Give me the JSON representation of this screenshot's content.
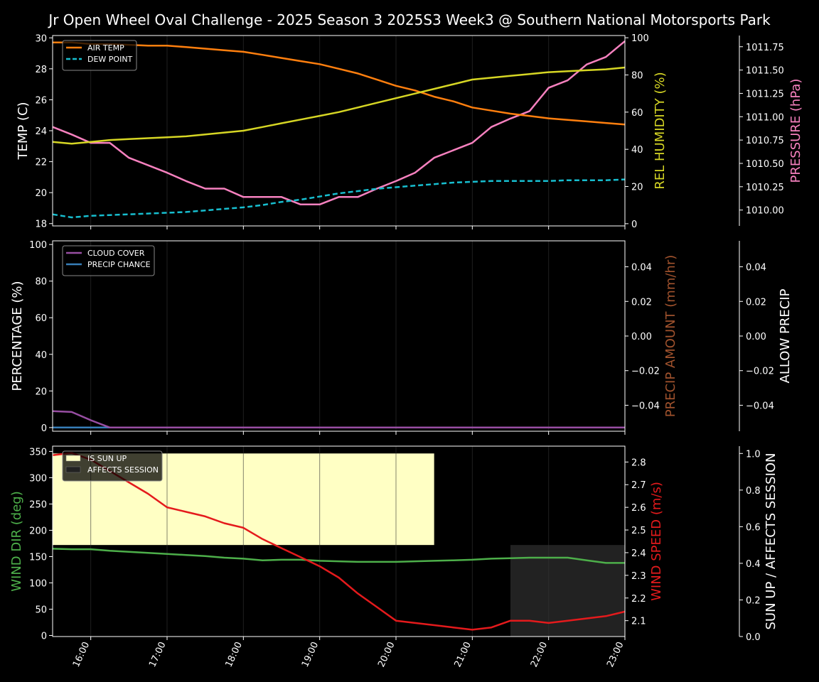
{
  "title": "Jr Open Wheel Oval Challenge - 2025 Season 3 2025S3 Week3 @ Southern National Motorsports Park",
  "colors": {
    "air_temp": "#ff7f0e",
    "dew_point": "#17becf",
    "humidity": "#d6d624",
    "pressure": "#f781bf",
    "cloud": "#984ea3",
    "precip_chance": "#377eb8",
    "precip_amount": "#a0522d",
    "wind_dir": "#4daf4a",
    "wind_speed": "#e41a1c",
    "sun_up": "#ffffc4",
    "affects_session": "#222222"
  },
  "chart_data": [
    {
      "type": "line",
      "panel": "temperature",
      "x": [
        "15:30",
        "15:45",
        "16:00",
        "16:15",
        "16:30",
        "16:45",
        "17:00",
        "17:15",
        "17:30",
        "17:45",
        "18:00",
        "18:15",
        "18:30",
        "18:45",
        "19:00",
        "19:15",
        "19:30",
        "19:45",
        "20:00",
        "20:15",
        "20:30",
        "20:45",
        "21:00",
        "21:15",
        "21:30",
        "21:45",
        "22:00",
        "22:15",
        "22:30",
        "22:45",
        "23:00"
      ],
      "xticks": [
        "16:00",
        "17:00",
        "18:00",
        "19:00",
        "20:00",
        "21:00",
        "22:00",
        "23:00"
      ],
      "legend": [
        "AIR TEMP",
        "DEW POINT"
      ],
      "ylabel": "TEMP (C)",
      "ylim": [
        17.85,
        30.15
      ],
      "yticks": [
        "18",
        "20",
        "22",
        "24",
        "26",
        "28",
        "30"
      ],
      "series": [
        {
          "name": "AIR TEMP",
          "axis": "left",
          "values": [
            29.7,
            29.7,
            29.6,
            29.6,
            29.55,
            29.5,
            29.5,
            29.4,
            29.3,
            29.2,
            29.1,
            28.9,
            28.7,
            28.5,
            28.3,
            28.0,
            27.7,
            27.3,
            26.9,
            26.6,
            26.2,
            25.9,
            25.5,
            25.3,
            25.1,
            24.95,
            24.8,
            24.7,
            24.6,
            24.5,
            24.4
          ]
        },
        {
          "name": "DEW POINT",
          "axis": "left",
          "dashed": true,
          "values": [
            18.6,
            18.4,
            18.5,
            18.55,
            18.6,
            18.65,
            18.7,
            18.75,
            18.85,
            18.95,
            19.05,
            19.2,
            19.4,
            19.55,
            19.75,
            19.95,
            20.1,
            20.25,
            20.35,
            20.45,
            20.55,
            20.65,
            20.7,
            20.75,
            20.75,
            20.75,
            20.75,
            20.8,
            20.8,
            20.8,
            20.85
          ]
        },
        {
          "name": "REL HUMIDITY",
          "axis": "right1",
          "values": [
            44,
            43,
            44,
            45,
            45.5,
            46,
            46.5,
            47,
            48,
            49,
            50,
            52,
            54,
            56,
            58,
            60,
            62.5,
            65,
            67.5,
            70,
            72.5,
            75,
            77.5,
            78.5,
            79.5,
            80.5,
            81.5,
            82,
            82.5,
            83,
            84
          ]
        },
        {
          "name": "PRESSURE",
          "axis": "right2",
          "values": [
            1010.89,
            1010.81,
            1010.72,
            1010.72,
            1010.56,
            1010.48,
            1010.4,
            1010.31,
            1010.23,
            1010.23,
            1010.14,
            1010.14,
            1010.14,
            1010.06,
            1010.06,
            1010.14,
            1010.14,
            1010.23,
            1010.31,
            1010.4,
            1010.56,
            1010.64,
            1010.72,
            1010.89,
            1010.98,
            1011.06,
            1011.31,
            1011.39,
            1011.56,
            1011.64,
            1011.81
          ]
        }
      ],
      "right_axis_1": {
        "label": "REL HUMIDITY (%)",
        "ylim": [
          -1.2,
          101.2
        ],
        "yticks": [
          "0",
          "20",
          "40",
          "60",
          "80",
          "100"
        ]
      },
      "right_axis_2": {
        "label": "PRESSURE (hPa)",
        "ylim": [
          1009.83,
          1011.87
        ],
        "yticks": [
          "1010.00",
          "1010.25",
          "1010.50",
          "1010.75",
          "1011.00",
          "1011.25",
          "1011.50",
          "1011.75"
        ]
      }
    },
    {
      "type": "line",
      "panel": "precipitation",
      "legend": [
        "CLOUD COVER",
        "PRECIP CHANCE"
      ],
      "ylabel": "PERCENTAGE (%)",
      "ylim": [
        -2,
        102
      ],
      "yticks": [
        "0",
        "20",
        "40",
        "60",
        "80",
        "100"
      ],
      "series": [
        {
          "name": "CLOUD COVER",
          "axis": "left",
          "values": [
            9,
            8.5,
            4,
            0,
            0,
            0,
            0,
            0,
            0,
            0,
            0,
            0,
            0,
            0,
            0,
            0,
            0,
            0,
            0,
            0,
            0,
            0,
            0,
            0,
            0,
            0,
            0,
            0,
            0,
            0,
            0
          ]
        },
        {
          "name": "PRECIP CHANCE",
          "axis": "left",
          "values": [
            0,
            0,
            0,
            0,
            0,
            0,
            0,
            0,
            0,
            0,
            0,
            0,
            0,
            0,
            0,
            0,
            0,
            0,
            0,
            0,
            0,
            0,
            0,
            0,
            0,
            0,
            0,
            0,
            0,
            0,
            0
          ]
        }
      ],
      "right_axis_1": {
        "label": "PRECIP AMOUNT (mm/hr)",
        "ylim": [
          -0.055,
          0.055
        ],
        "yticks": [
          "−0.04",
          "−0.02",
          "0.00",
          "0.02",
          "0.04"
        ]
      },
      "right_axis_2": {
        "label": "ALLOW PRECIP",
        "ylim": [
          -0.055,
          0.055
        ],
        "yticks": [
          "−0.04",
          "−0.02",
          "0.00",
          "0.02",
          "0.04"
        ]
      }
    },
    {
      "type": "line",
      "panel": "wind",
      "legend": [
        "IS SUN UP",
        "AFFECTS SESSION"
      ],
      "ylabel": "WIND DIR (deg)",
      "ylim": [
        -2,
        360
      ],
      "yticks": [
        "0",
        "50",
        "100",
        "150",
        "200",
        "250",
        "300",
        "350"
      ],
      "sun_up_until": "20:30",
      "affects_session_from": "21:30",
      "series": [
        {
          "name": "WIND DIR",
          "axis": "left",
          "values": [
            165,
            164,
            164,
            161,
            159,
            157,
            155,
            153,
            151,
            148,
            146,
            143,
            144,
            144,
            142,
            141,
            140,
            140,
            140,
            141,
            142,
            143,
            144,
            146,
            147,
            148,
            148,
            148,
            143,
            138,
            138
          ]
        },
        {
          "name": "WIND SPEED",
          "axis": "right1",
          "values": [
            2.83,
            2.84,
            2.81,
            2.76,
            2.71,
            2.66,
            2.6,
            2.58,
            2.56,
            2.53,
            2.51,
            2.46,
            2.42,
            2.38,
            2.34,
            2.29,
            2.22,
            2.16,
            2.1,
            2.09,
            2.08,
            2.07,
            2.06,
            2.07,
            2.1,
            2.1,
            2.09,
            2.1,
            2.11,
            2.12,
            2.14
          ]
        }
      ],
      "right_axis_1": {
        "label": "WIND SPEED (m/s)",
        "ylim": [
          2.03,
          2.87
        ],
        "yticks": [
          "2.1",
          "2.2",
          "2.3",
          "2.4",
          "2.5",
          "2.6",
          "2.7",
          "2.8"
        ]
      },
      "right_axis_2": {
        "label": "SUN UP / AFFECTS SESSION",
        "ylim": [
          0,
          1.04
        ],
        "yticks": [
          "0.0",
          "0.2",
          "0.4",
          "0.6",
          "0.8",
          "1.0"
        ]
      }
    }
  ]
}
